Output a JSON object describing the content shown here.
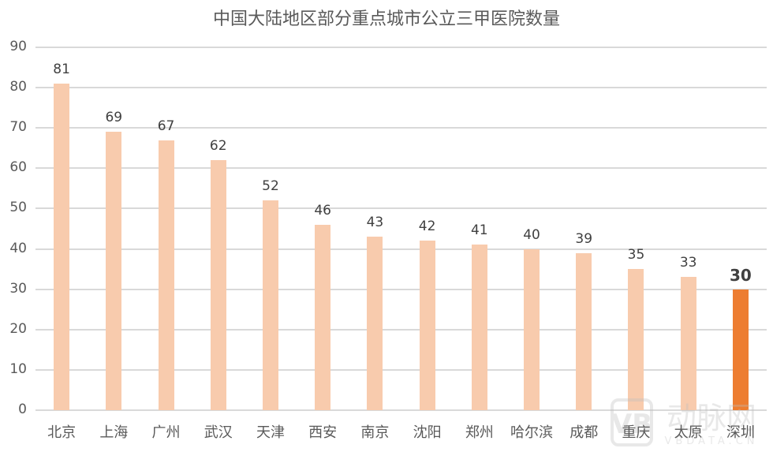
{
  "title": "中国大陆地区部分重点城市公立三甲医院数量",
  "chart_data": {
    "type": "bar",
    "title": "中国大陆地区部分重点城市公立三甲医院数量",
    "xlabel": "",
    "ylabel": "",
    "ylim": [
      0,
      90
    ],
    "yticks": [
      0,
      10,
      20,
      30,
      40,
      50,
      60,
      70,
      80,
      90
    ],
    "grid": true,
    "legend": null,
    "categories": [
      "北京",
      "上海",
      "广州",
      "武汉",
      "天津",
      "西安",
      "南京",
      "沈阳",
      "郑州",
      "哈尔滨",
      "成都",
      "重庆",
      "太原",
      "深圳"
    ],
    "values": [
      81,
      69,
      67,
      62,
      52,
      46,
      43,
      42,
      41,
      40,
      39,
      35,
      33,
      30
    ],
    "highlight": {
      "category": "深圳",
      "value": 30
    },
    "colors": {
      "default": "#F8CBAD",
      "highlight": "#ED7D31"
    }
  },
  "watermark": {
    "logo": "VB",
    "text": "动脉网",
    "subtext": "VBDATA.CN"
  }
}
